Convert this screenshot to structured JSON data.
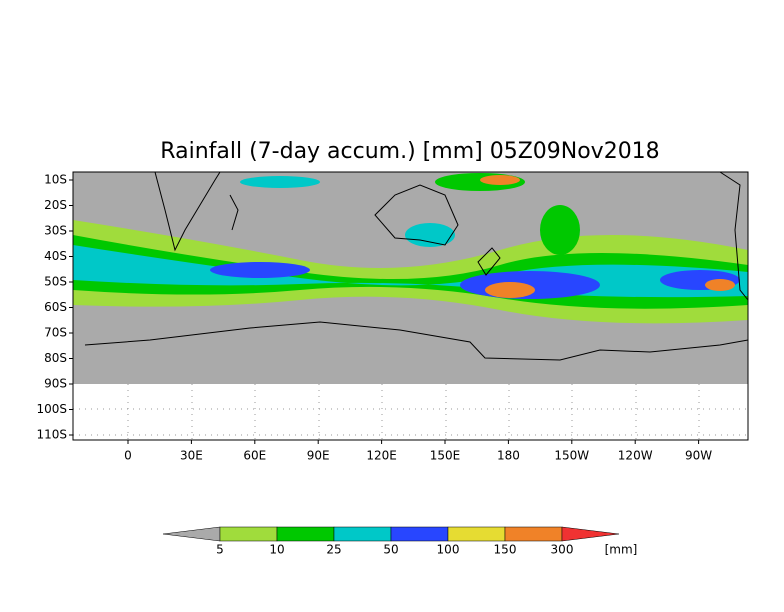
{
  "title": "Rainfall (7-day accum.) [mm] 05Z09Nov2018",
  "lat_labels": [
    "10S",
    "20S",
    "30S",
    "40S",
    "50S",
    "60S",
    "70S",
    "80S",
    "90S",
    "100S",
    "110S"
  ],
  "lon_labels": [
    "0",
    "30E",
    "60E",
    "90E",
    "120E",
    "150E",
    "180",
    "150W",
    "120W",
    "90W"
  ],
  "legend": {
    "levels": [
      "5",
      "10",
      "25",
      "50",
      "100",
      "150",
      "300"
    ],
    "colors": [
      "#aaaaaa",
      "#a0dc3c",
      "#00c800",
      "#00c8c8",
      "#2846ff",
      "#e6dc32",
      "#f08228",
      "#f03232"
    ],
    "unit": "[mm]"
  }
}
